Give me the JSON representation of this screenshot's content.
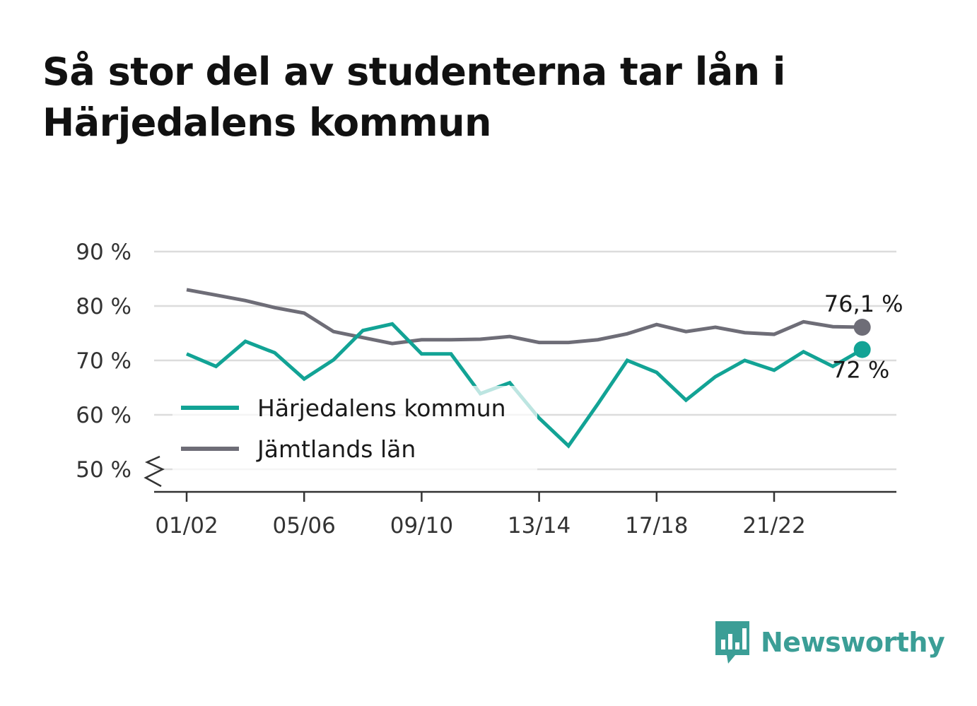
{
  "title": "Så stor del av studenterna tar lån i Härjedalens kommun",
  "brand": {
    "name": "Newsworthy",
    "icon": "newsworthy-logo-icon",
    "color": "#3b9e96"
  },
  "chart_data": {
    "type": "line",
    "title": "Så stor del av studenterna tar lån i Härjedalens kommun",
    "xlabel": "",
    "ylabel": "",
    "x": [
      "01/02",
      "02/03",
      "03/04",
      "04/05",
      "05/06",
      "06/07",
      "07/08",
      "08/09",
      "09/10",
      "10/11",
      "11/12",
      "12/13",
      "13/14",
      "14/15",
      "15/16",
      "16/17",
      "17/18",
      "18/19",
      "19/20",
      "20/21",
      "21/22",
      "22/23",
      "23/24",
      "24/25"
    ],
    "x_tick_labels": [
      "01/02",
      "05/06",
      "09/10",
      "13/14",
      "17/18",
      "21/22"
    ],
    "y_tick_labels": [
      "50 %",
      "60 %",
      "70 %",
      "80 %",
      "90 %"
    ],
    "y_ticks": [
      50,
      60,
      70,
      80,
      90
    ],
    "ylim": [
      46,
      90
    ],
    "y_axis_break": true,
    "grid": true,
    "legend": "inside-bottom-left",
    "series": [
      {
        "name": "Härjedalens kommun",
        "color": "#12a395",
        "values": [
          71.2,
          68.9,
          73.5,
          71.4,
          66.6,
          70.1,
          75.5,
          76.7,
          71.2,
          71.2,
          63.9,
          65.9,
          59.4,
          54.3,
          62.0,
          70.0,
          67.8,
          62.7,
          67.0,
          70.0,
          68.2,
          71.6,
          68.9,
          72.0
        ],
        "end_label": "72 %"
      },
      {
        "name": "Jämtlands län",
        "color": "#6e6d77",
        "values": [
          83.0,
          82.0,
          81.0,
          79.7,
          78.7,
          75.3,
          74.2,
          73.1,
          73.8,
          73.8,
          73.9,
          74.4,
          73.3,
          73.3,
          73.8,
          74.9,
          76.6,
          75.3,
          76.1,
          75.1,
          74.8,
          77.1,
          76.2,
          76.1
        ],
        "end_label": "76,1 %"
      }
    ]
  }
}
